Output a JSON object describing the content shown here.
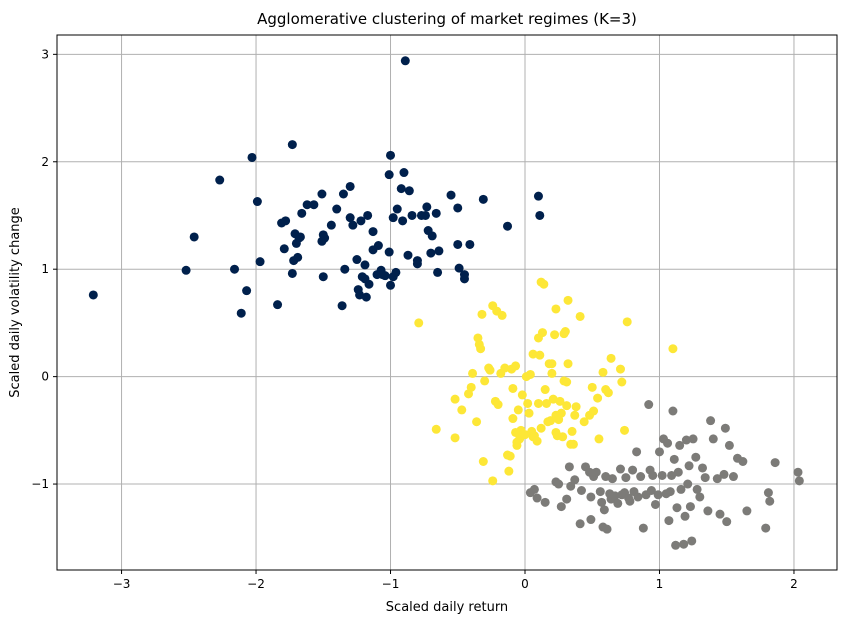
{
  "chart_data": {
    "type": "scatter",
    "title": "Agglomerative clustering of market regimes (K=3)",
    "xlabel": "Scaled daily return",
    "ylabel": "Scaled daily volatility change",
    "xlim": [
      -3.48,
      2.32
    ],
    "ylim": [
      -1.8,
      3.18
    ],
    "x_ticks": [
      -3,
      -2,
      -1,
      0,
      1,
      2
    ],
    "y_ticks": [
      -1,
      0,
      1,
      2,
      3
    ],
    "x_tick_labels": [
      "−3",
      "−2",
      "−1",
      "0",
      "1",
      "2"
    ],
    "y_tick_labels": [
      "−1",
      "0",
      "1",
      "2",
      "3"
    ],
    "grid": true,
    "legend": "none",
    "series": [
      {
        "color": "#00204c",
        "points": [
          [
            -3.21,
            0.76
          ],
          [
            -2.52,
            0.99
          ],
          [
            -2.46,
            1.3
          ],
          [
            -2.27,
            1.83
          ],
          [
            -2.16,
            1.0
          ],
          [
            -2.11,
            0.59
          ],
          [
            -2.07,
            0.8
          ],
          [
            -2.03,
            2.04
          ],
          [
            -1.99,
            1.63
          ],
          [
            -1.97,
            1.07
          ],
          [
            -1.84,
            0.67
          ],
          [
            -1.81,
            1.43
          ],
          [
            -1.78,
            1.45
          ],
          [
            -1.79,
            1.19
          ],
          [
            -1.73,
            2.16
          ],
          [
            -1.73,
            0.96
          ],
          [
            -1.72,
            1.08
          ],
          [
            -1.71,
            1.33
          ],
          [
            -1.7,
            1.24
          ],
          [
            -1.69,
            1.11
          ],
          [
            -1.68,
            1.29
          ],
          [
            -1.67,
            1.3
          ],
          [
            -1.66,
            1.52
          ],
          [
            -1.62,
            1.6
          ],
          [
            -1.57,
            1.6
          ],
          [
            -1.51,
            1.7
          ],
          [
            -1.51,
            1.26
          ],
          [
            -1.5,
            0.93
          ],
          [
            -1.5,
            1.32
          ],
          [
            -1.49,
            1.29
          ],
          [
            -1.44,
            1.41
          ],
          [
            -1.4,
            1.56
          ],
          [
            -1.36,
            0.66
          ],
          [
            -1.35,
            1.7
          ],
          [
            -1.34,
            1.0
          ],
          [
            -1.3,
            1.77
          ],
          [
            -1.3,
            1.48
          ],
          [
            -1.28,
            1.41
          ],
          [
            -1.25,
            1.09
          ],
          [
            -1.24,
            0.81
          ],
          [
            -1.23,
            0.76
          ],
          [
            -1.22,
            1.45
          ],
          [
            -1.21,
            0.93
          ],
          [
            -1.19,
            0.91
          ],
          [
            -1.19,
            1.04
          ],
          [
            -1.18,
            0.74
          ],
          [
            -1.17,
            1.5
          ],
          [
            -1.16,
            0.86
          ],
          [
            -1.13,
            1.18
          ],
          [
            -1.13,
            1.35
          ],
          [
            -1.1,
            0.95
          ],
          [
            -1.09,
            1.22
          ],
          [
            -1.07,
            0.99
          ],
          [
            -1.06,
            0.95
          ],
          [
            -1.04,
            0.94
          ],
          [
            -1.01,
            1.88
          ],
          [
            -1.01,
            1.16
          ],
          [
            -1.0,
            0.85
          ],
          [
            -1.0,
            2.06
          ],
          [
            -0.98,
            0.93
          ],
          [
            -0.98,
            1.48
          ],
          [
            -0.96,
            0.97
          ],
          [
            -0.95,
            1.56
          ],
          [
            -0.92,
            1.75
          ],
          [
            -0.91,
            1.45
          ],
          [
            -0.9,
            1.9
          ],
          [
            -0.89,
            2.94
          ],
          [
            -0.87,
            1.13
          ],
          [
            -0.86,
            1.73
          ],
          [
            -0.84,
            1.5
          ],
          [
            -0.8,
            1.05
          ],
          [
            -0.8,
            1.08
          ],
          [
            -0.77,
            1.5
          ],
          [
            -0.74,
            1.5
          ],
          [
            -0.73,
            1.58
          ],
          [
            -0.72,
            1.36
          ],
          [
            -0.7,
            1.15
          ],
          [
            -0.69,
            1.31
          ],
          [
            -0.66,
            1.52
          ],
          [
            -0.65,
            0.97
          ],
          [
            -0.64,
            1.17
          ],
          [
            -0.55,
            1.69
          ],
          [
            -0.5,
            1.57
          ],
          [
            -0.5,
            1.23
          ],
          [
            -0.49,
            1.01
          ],
          [
            -0.45,
            0.95
          ],
          [
            -0.45,
            0.91
          ],
          [
            -0.41,
            1.23
          ],
          [
            -0.31,
            1.65
          ],
          [
            -0.13,
            1.4
          ],
          [
            0.1,
            1.68
          ],
          [
            0.11,
            1.5
          ]
        ]
      },
      {
        "color": "#fde737",
        "points": [
          [
            -0.79,
            0.5
          ],
          [
            -0.66,
            -0.49
          ],
          [
            -0.52,
            -0.21
          ],
          [
            -0.52,
            -0.57
          ],
          [
            -0.47,
            -0.31
          ],
          [
            -0.42,
            -0.16
          ],
          [
            -0.4,
            -0.1
          ],
          [
            -0.39,
            0.03
          ],
          [
            -0.36,
            -0.42
          ],
          [
            -0.35,
            0.36
          ],
          [
            -0.34,
            0.3
          ],
          [
            -0.33,
            0.26
          ],
          [
            -0.32,
            0.58
          ],
          [
            -0.31,
            -0.79
          ],
          [
            -0.3,
            -0.04
          ],
          [
            -0.27,
            0.08
          ],
          [
            -0.26,
            0.06
          ],
          [
            -0.24,
            0.66
          ],
          [
            -0.24,
            -0.97
          ],
          [
            -0.22,
            -0.23
          ],
          [
            -0.21,
            0.61
          ],
          [
            -0.2,
            -0.26
          ],
          [
            -0.18,
            0.03
          ],
          [
            -0.17,
            0.57
          ],
          [
            -0.15,
            0.08
          ],
          [
            -0.13,
            -0.73
          ],
          [
            -0.12,
            -0.88
          ],
          [
            -0.11,
            -0.74
          ],
          [
            -0.1,
            0.07
          ],
          [
            -0.09,
            -0.11
          ],
          [
            -0.09,
            -0.39
          ],
          [
            -0.07,
            0.1
          ],
          [
            -0.07,
            -0.52
          ],
          [
            -0.06,
            -0.64
          ],
          [
            -0.06,
            -0.61
          ],
          [
            -0.05,
            -0.31
          ],
          [
            -0.04,
            -0.58
          ],
          [
            -0.03,
            -0.5
          ],
          [
            -0.02,
            -0.17
          ],
          [
            0.0,
            -0.54
          ],
          [
            0.01,
            0.0
          ],
          [
            0.02,
            -0.25
          ],
          [
            0.03,
            -0.34
          ],
          [
            0.04,
            0.02
          ],
          [
            0.05,
            -0.51
          ],
          [
            0.06,
            -0.56
          ],
          [
            0.06,
            0.21
          ],
          [
            0.07,
            -0.55
          ],
          [
            0.09,
            -0.6
          ],
          [
            0.1,
            -0.25
          ],
          [
            0.1,
            0.36
          ],
          [
            0.11,
            0.2
          ],
          [
            0.12,
            0.88
          ],
          [
            0.12,
            -0.48
          ],
          [
            0.13,
            0.41
          ],
          [
            0.14,
            0.86
          ],
          [
            0.15,
            -0.12
          ],
          [
            0.16,
            -0.25
          ],
          [
            0.17,
            -0.42
          ],
          [
            0.18,
            0.12
          ],
          [
            0.19,
            -0.41
          ],
          [
            0.2,
            0.03
          ],
          [
            0.2,
            0.12
          ],
          [
            0.21,
            -0.21
          ],
          [
            0.22,
            0.39
          ],
          [
            0.23,
            -0.52
          ],
          [
            0.23,
            0.63
          ],
          [
            0.23,
            -0.36
          ],
          [
            0.24,
            -0.55
          ],
          [
            0.25,
            -0.4
          ],
          [
            0.26,
            -0.23
          ],
          [
            0.27,
            -0.34
          ],
          [
            0.28,
            -0.56
          ],
          [
            0.29,
            0.4
          ],
          [
            0.29,
            -0.04
          ],
          [
            0.3,
            0.42
          ],
          [
            0.31,
            -0.27
          ],
          [
            0.31,
            -0.05
          ],
          [
            0.32,
            0.71
          ],
          [
            0.32,
            0.12
          ],
          [
            0.34,
            -0.63
          ],
          [
            0.35,
            -0.51
          ],
          [
            0.36,
            -0.63
          ],
          [
            0.37,
            -0.36
          ],
          [
            0.38,
            -0.28
          ],
          [
            0.41,
            0.56
          ],
          [
            0.44,
            -0.42
          ],
          [
            0.48,
            -0.36
          ],
          [
            0.5,
            -0.1
          ],
          [
            0.51,
            -0.32
          ],
          [
            0.54,
            -0.2
          ],
          [
            0.55,
            -0.58
          ],
          [
            0.58,
            0.04
          ],
          [
            0.6,
            -0.12
          ],
          [
            0.62,
            -0.15
          ],
          [
            0.64,
            0.17
          ],
          [
            0.71,
            0.07
          ],
          [
            0.72,
            -0.05
          ],
          [
            0.74,
            -0.5
          ],
          [
            0.76,
            0.51
          ],
          [
            1.1,
            0.26
          ]
        ]
      },
      {
        "color": "#7c7b78",
        "points": [
          [
            0.04,
            -1.08
          ],
          [
            0.07,
            -1.05
          ],
          [
            0.09,
            -1.13
          ],
          [
            0.15,
            -1.17
          ],
          [
            0.23,
            -0.98
          ],
          [
            0.25,
            -1.0
          ],
          [
            0.27,
            -1.21
          ],
          [
            0.31,
            -1.14
          ],
          [
            0.33,
            -0.84
          ],
          [
            0.34,
            -1.02
          ],
          [
            0.37,
            -0.96
          ],
          [
            0.41,
            -1.37
          ],
          [
            0.42,
            -1.06
          ],
          [
            0.45,
            -0.84
          ],
          [
            0.48,
            -0.89
          ],
          [
            0.49,
            -1.12
          ],
          [
            0.49,
            -1.33
          ],
          [
            0.51,
            -0.93
          ],
          [
            0.53,
            -0.89
          ],
          [
            0.56,
            -1.07
          ],
          [
            0.57,
            -1.17
          ],
          [
            0.58,
            -1.4
          ],
          [
            0.59,
            -1.24
          ],
          [
            0.6,
            -0.93
          ],
          [
            0.61,
            -1.42
          ],
          [
            0.63,
            -1.09
          ],
          [
            0.64,
            -1.14
          ],
          [
            0.65,
            -0.95
          ],
          [
            0.67,
            -1.11
          ],
          [
            0.69,
            -1.18
          ],
          [
            0.71,
            -0.86
          ],
          [
            0.72,
            -1.1
          ],
          [
            0.74,
            -1.08
          ],
          [
            0.75,
            -0.94
          ],
          [
            0.77,
            -1.13
          ],
          [
            0.78,
            -1.16
          ],
          [
            0.8,
            -0.87
          ],
          [
            0.81,
            -1.07
          ],
          [
            0.83,
            -0.7
          ],
          [
            0.84,
            -1.12
          ],
          [
            0.86,
            -0.93
          ],
          [
            0.88,
            -1.41
          ],
          [
            0.9,
            -1.1
          ],
          [
            0.92,
            -0.26
          ],
          [
            0.93,
            -0.87
          ],
          [
            0.94,
            -1.06
          ],
          [
            0.95,
            -0.92
          ],
          [
            0.97,
            -1.19
          ],
          [
            0.99,
            -1.1
          ],
          [
            1.0,
            -0.7
          ],
          [
            1.02,
            -0.92
          ],
          [
            1.03,
            -0.58
          ],
          [
            1.05,
            -1.09
          ],
          [
            1.06,
            -0.62
          ],
          [
            1.07,
            -1.34
          ],
          [
            1.08,
            -1.07
          ],
          [
            1.09,
            -0.92
          ],
          [
            1.1,
            -0.32
          ],
          [
            1.11,
            -0.77
          ],
          [
            1.12,
            -1.57
          ],
          [
            1.13,
            -1.22
          ],
          [
            1.14,
            -0.89
          ],
          [
            1.15,
            -0.64
          ],
          [
            1.16,
            -1.05
          ],
          [
            1.18,
            -1.56
          ],
          [
            1.19,
            -1.3
          ],
          [
            1.2,
            -0.59
          ],
          [
            1.21,
            -1.0
          ],
          [
            1.22,
            -0.83
          ],
          [
            1.23,
            -1.21
          ],
          [
            1.24,
            -1.53
          ],
          [
            1.25,
            -0.58
          ],
          [
            1.27,
            -0.75
          ],
          [
            1.28,
            -1.05
          ],
          [
            1.3,
            -1.12
          ],
          [
            1.32,
            -0.85
          ],
          [
            1.34,
            -0.94
          ],
          [
            1.36,
            -1.25
          ],
          [
            1.38,
            -0.41
          ],
          [
            1.4,
            -0.58
          ],
          [
            1.43,
            -0.95
          ],
          [
            1.45,
            -1.28
          ],
          [
            1.48,
            -0.91
          ],
          [
            1.49,
            -0.48
          ],
          [
            1.5,
            -1.35
          ],
          [
            1.52,
            -0.64
          ],
          [
            1.55,
            -0.93
          ],
          [
            1.58,
            -0.76
          ],
          [
            1.62,
            -0.79
          ],
          [
            1.65,
            -1.25
          ],
          [
            1.79,
            -1.41
          ],
          [
            1.81,
            -1.08
          ],
          [
            1.82,
            -1.16
          ],
          [
            1.86,
            -0.8
          ],
          [
            2.03,
            -0.89
          ],
          [
            2.04,
            -0.97
          ]
        ]
      }
    ]
  }
}
